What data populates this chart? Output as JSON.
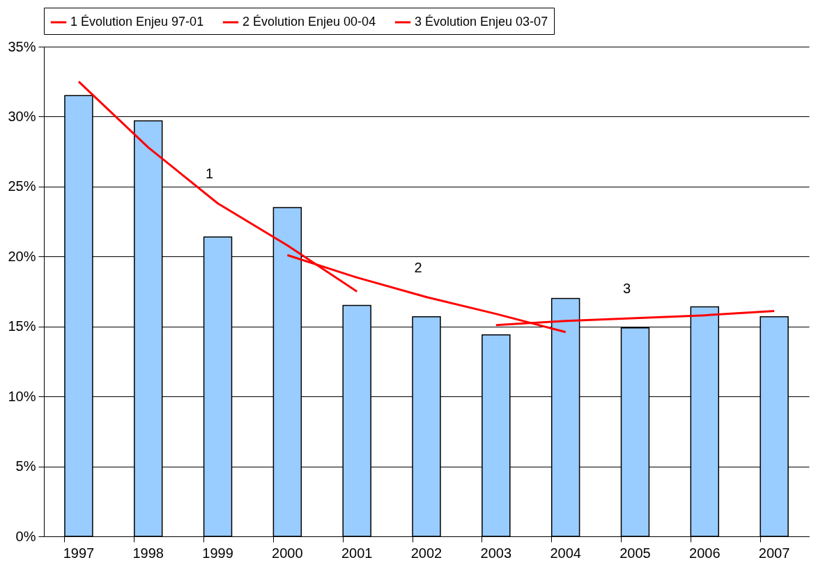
{
  "chart_data": {
    "type": "bar",
    "categories": [
      "1997",
      "1998",
      "1999",
      "2000",
      "2001",
      "2002",
      "2003",
      "2004",
      "2005",
      "2006",
      "2007"
    ],
    "values": [
      31.5,
      29.7,
      21.4,
      23.5,
      16.5,
      15.7,
      14.4,
      17.0,
      14.9,
      16.4,
      15.7
    ],
    "color": "#99ccff",
    "series": [
      {
        "name": "1 Évolution Enjeu 97-01",
        "type": "line",
        "color": "#ff0000",
        "values": [
          32.5,
          27.8,
          23.8,
          20.8,
          17.5,
          null,
          null,
          null,
          null,
          null,
          null
        ]
      },
      {
        "name": "2 Évolution Enjeu 00-04",
        "type": "line",
        "color": "#ff0000",
        "values": [
          null,
          null,
          null,
          20.1,
          18.5,
          17.1,
          15.9,
          14.6,
          null,
          null,
          null
        ]
      },
      {
        "name": "3 Évolution Enjeu 03-07",
        "type": "line",
        "color": "#ff0000",
        "values": [
          null,
          null,
          null,
          null,
          null,
          null,
          15.1,
          15.4,
          15.6,
          15.8,
          16.1
        ]
      }
    ],
    "ylim": [
      0,
      35
    ],
    "yticks": [
      {
        "value": 0,
        "label": "0%"
      },
      {
        "value": 5,
        "label": "5%"
      },
      {
        "value": 10,
        "label": "10%"
      },
      {
        "value": 15,
        "label": "15%"
      },
      {
        "value": 20,
        "label": "20%"
      },
      {
        "value": 25,
        "label": "25%"
      },
      {
        "value": 30,
        "label": "30%"
      },
      {
        "value": 35,
        "label": "35%"
      }
    ],
    "annotations": [
      "1",
      "2",
      "3"
    ],
    "grid": "y",
    "legend": "top",
    "marker": "none",
    "line_style": "solid"
  }
}
